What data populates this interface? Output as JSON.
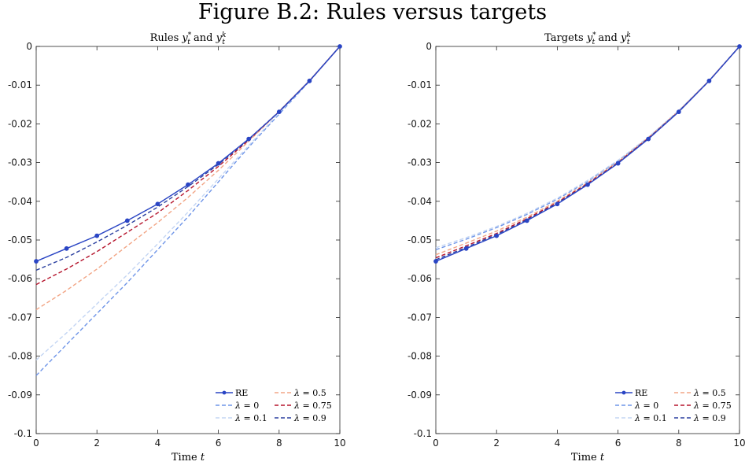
{
  "figure_title": "Figure B.2: Rules versus targets",
  "chart_data": [
    {
      "type": "line",
      "title": "Rules y_t^* and y_t^k",
      "title_parts": {
        "prefix": "Rules",
        "var": "y",
        "sub": "t",
        "sup1": "*",
        "conj": "and",
        "sup2": "k"
      },
      "xlabel": "Time t",
      "xlabel_parts": {
        "text": "Time",
        "var": "t"
      },
      "ylabel": "",
      "xlim": [
        0,
        10
      ],
      "ylim": [
        -0.1,
        0
      ],
      "xticks": [
        0,
        2,
        4,
        6,
        8,
        10
      ],
      "yticks": [
        0,
        -0.01,
        -0.02,
        -0.03,
        -0.04,
        -0.05,
        -0.06,
        -0.07,
        -0.08,
        -0.09,
        -0.1
      ],
      "ytick_labels": [
        "0",
        "-0.01",
        "-0.02",
        "-0.03",
        "-0.04",
        "-0.05",
        "-0.06",
        "-0.07",
        "-0.08",
        "-0.09",
        "-0.1"
      ],
      "legend_position": "bottom-right",
      "x": [
        0,
        1,
        2,
        3,
        4,
        5,
        6,
        7,
        8,
        9,
        10
      ],
      "series": [
        {
          "name": "RE",
          "color": "#2a45c4",
          "style": "solid-marker",
          "values": [
            -0.0555,
            -0.0522,
            -0.0489,
            -0.045,
            -0.0407,
            -0.0357,
            -0.0302,
            -0.0239,
            -0.0169,
            -0.0089,
            0.0
          ]
        },
        {
          "name": "λ = 0",
          "color": "#6f95e8",
          "style": "dashed",
          "values": [
            -0.085,
            -0.077,
            -0.069,
            -0.061,
            -0.0525,
            -0.044,
            -0.035,
            -0.026,
            -0.0175,
            -0.009,
            0.0
          ]
        },
        {
          "name": "λ = 0.1",
          "color": "#c3d5f3",
          "style": "dashed",
          "values": [
            -0.081,
            -0.074,
            -0.0665,
            -0.059,
            -0.051,
            -0.0428,
            -0.0342,
            -0.0256,
            -0.0172,
            -0.0088,
            0.0
          ]
        },
        {
          "name": "λ = 0.5",
          "color": "#f2a585",
          "style": "dashed",
          "values": [
            -0.068,
            -0.063,
            -0.0575,
            -0.0515,
            -0.0455,
            -0.039,
            -0.032,
            -0.0245,
            -0.0168,
            -0.0088,
            0.0
          ]
        },
        {
          "name": "λ = 0.75",
          "color": "#b5152d",
          "style": "dashed",
          "values": [
            -0.0615,
            -0.0575,
            -0.053,
            -0.048,
            -0.043,
            -0.0372,
            -0.031,
            -0.0242,
            -0.0168,
            -0.0089,
            0.0
          ]
        },
        {
          "name": "λ = 0.9",
          "color": "#2a3f9f",
          "style": "dashed",
          "values": [
            -0.0578,
            -0.0545,
            -0.0505,
            -0.0462,
            -0.0415,
            -0.0362,
            -0.0305,
            -0.024,
            -0.0168,
            -0.0089,
            0.0
          ]
        }
      ]
    },
    {
      "type": "line",
      "title": "Targets y_t^* and y_t^k",
      "title_parts": {
        "prefix": "Targets",
        "var": "y",
        "sub": "t",
        "sup1": "*",
        "conj": "and",
        "sup2": "k"
      },
      "xlabel": "Time t",
      "xlabel_parts": {
        "text": "Time",
        "var": "t"
      },
      "ylabel": "",
      "xlim": [
        0,
        10
      ],
      "ylim": [
        -0.1,
        0
      ],
      "xticks": [
        0,
        2,
        4,
        6,
        8,
        10
      ],
      "yticks": [
        0,
        -0.01,
        -0.02,
        -0.03,
        -0.04,
        -0.05,
        -0.06,
        -0.07,
        -0.08,
        -0.09,
        -0.1
      ],
      "ytick_labels": [
        "0",
        "-0.01",
        "-0.02",
        "-0.03",
        "-0.04",
        "-0.05",
        "-0.06",
        "-0.07",
        "-0.08",
        "-0.09",
        "-0.1"
      ],
      "legend_position": "bottom-right",
      "x": [
        0,
        1,
        2,
        3,
        4,
        5,
        6,
        7,
        8,
        9,
        10
      ],
      "series": [
        {
          "name": "RE",
          "color": "#2a45c4",
          "style": "solid-marker",
          "values": [
            -0.0555,
            -0.0522,
            -0.0489,
            -0.045,
            -0.0407,
            -0.0357,
            -0.0302,
            -0.0239,
            -0.0169,
            -0.0089,
            0.0
          ]
        },
        {
          "name": "λ = 0",
          "color": "#6f95e8",
          "style": "dashed",
          "values": [
            -0.0525,
            -0.0498,
            -0.0468,
            -0.0434,
            -0.0395,
            -0.0348,
            -0.0296,
            -0.0235,
            -0.0166,
            -0.0088,
            0.0
          ]
        },
        {
          "name": "λ = 0.1",
          "color": "#c3d5f3",
          "style": "dashed",
          "values": [
            -0.052,
            -0.0494,
            -0.0465,
            -0.0431,
            -0.0392,
            -0.0346,
            -0.0294,
            -0.0234,
            -0.0166,
            -0.0088,
            0.0
          ]
        },
        {
          "name": "λ = 0.5",
          "color": "#f2a585",
          "style": "dashed",
          "values": [
            -0.0538,
            -0.0508,
            -0.0477,
            -0.0441,
            -0.04,
            -0.0352,
            -0.0298,
            -0.0236,
            -0.0167,
            -0.0088,
            0.0
          ]
        },
        {
          "name": "λ = 0.75",
          "color": "#b5152d",
          "style": "dashed",
          "values": [
            -0.0546,
            -0.0515,
            -0.0483,
            -0.0445,
            -0.0403,
            -0.0354,
            -0.03,
            -0.0237,
            -0.0168,
            -0.0089,
            0.0
          ]
        },
        {
          "name": "λ = 0.9",
          "color": "#2a3f9f",
          "style": "dashed",
          "values": [
            -0.0551,
            -0.0519,
            -0.0486,
            -0.0448,
            -0.0405,
            -0.0356,
            -0.0301,
            -0.0238,
            -0.0168,
            -0.0089,
            0.0
          ]
        }
      ]
    }
  ]
}
